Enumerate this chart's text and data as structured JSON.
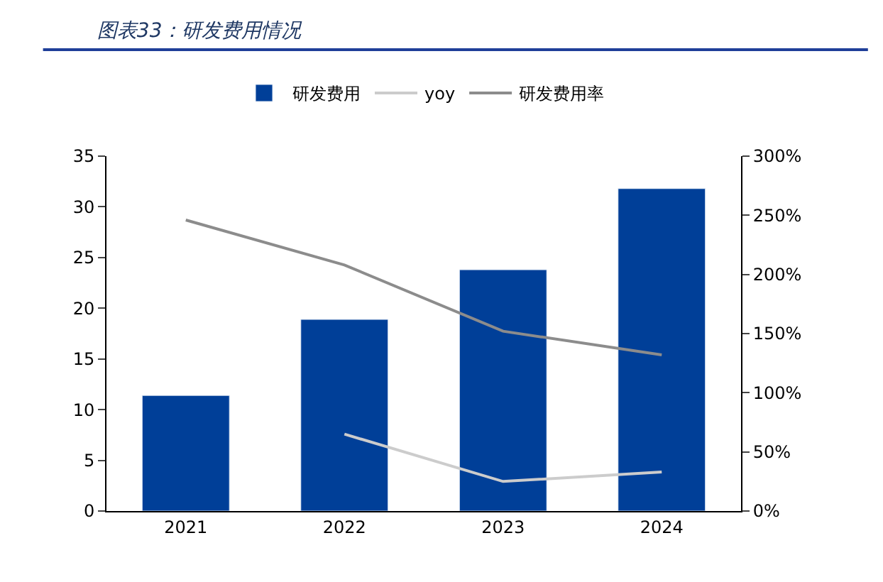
{
  "chart_data": {
    "type": "bar",
    "title": "图表33：研发费用情况",
    "categories": [
      "2021",
      "2022",
      "2023",
      "2024"
    ],
    "series": [
      {
        "name": "研发费用",
        "color": "#003f98",
        "values": [
          11.4,
          18.9,
          23.8,
          31.8
        ]
      },
      {
        "name": "yoy",
        "type": "line",
        "axis": "y2",
        "color": "#cccccc",
        "values": [
          null,
          65,
          25,
          33
        ]
      },
      {
        "name": "研发费用率",
        "type": "line",
        "axis": "y2",
        "color": "#8c8c8c",
        "values": [
          246,
          208,
          152,
          132
        ]
      }
    ],
    "ylim": [
      0,
      35
    ],
    "yticks": [
      0,
      5,
      10,
      15,
      20,
      25,
      30,
      35
    ],
    "y2lim": [
      0,
      300
    ],
    "y2ticks": [
      {
        "value": 0,
        "label": "0%"
      },
      {
        "value": 50,
        "label": "50%"
      },
      {
        "value": 100,
        "label": "100%"
      },
      {
        "value": 150,
        "label": "150%"
      },
      {
        "value": 200,
        "label": "200%"
      },
      {
        "value": 250,
        "label": "250%"
      },
      {
        "value": 300,
        "label": "300%"
      }
    ],
    "legend": "top",
    "marker": "none",
    "line_style": "solid"
  }
}
